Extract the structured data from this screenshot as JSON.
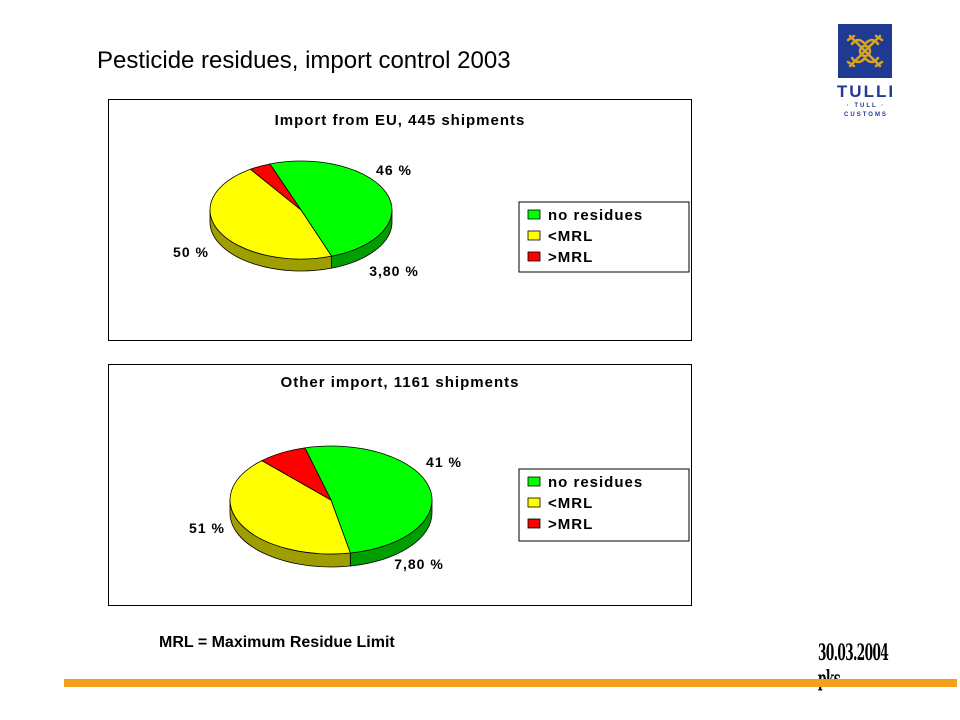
{
  "slide": {
    "title": "Pesticide residues, import control 2003",
    "footnote": "MRL = Maximum Residue Limit",
    "datestamp": "30.03.2004 pks"
  },
  "logo": {
    "name": "TULLI",
    "sub1": "· TULL ·",
    "sub2": "CUSTOMS",
    "color": "#1f3a93"
  },
  "colors": {
    "no_residues": "#00ff00",
    "lt_mrl": "#ffff00",
    "gt_mrl": "#ff0000",
    "accent_bar": "#f5a01a"
  },
  "chart_data": [
    {
      "type": "pie",
      "title": "Import from EU, 445 shipments",
      "labels": [
        "no residues",
        "<MRL",
        ">MRL"
      ],
      "values": [
        50,
        46,
        3.8
      ],
      "data_labels": [
        "50 %",
        "46 %",
        "3,80 %"
      ],
      "legend": "right"
    },
    {
      "type": "pie",
      "title": "Other import, 1161 shipments",
      "labels": [
        "no residues",
        "<MRL",
        ">MRL"
      ],
      "values": [
        51,
        41,
        7.8
      ],
      "data_labels": [
        "51 %",
        "41 %",
        "7,80 %"
      ],
      "legend": "right"
    }
  ]
}
